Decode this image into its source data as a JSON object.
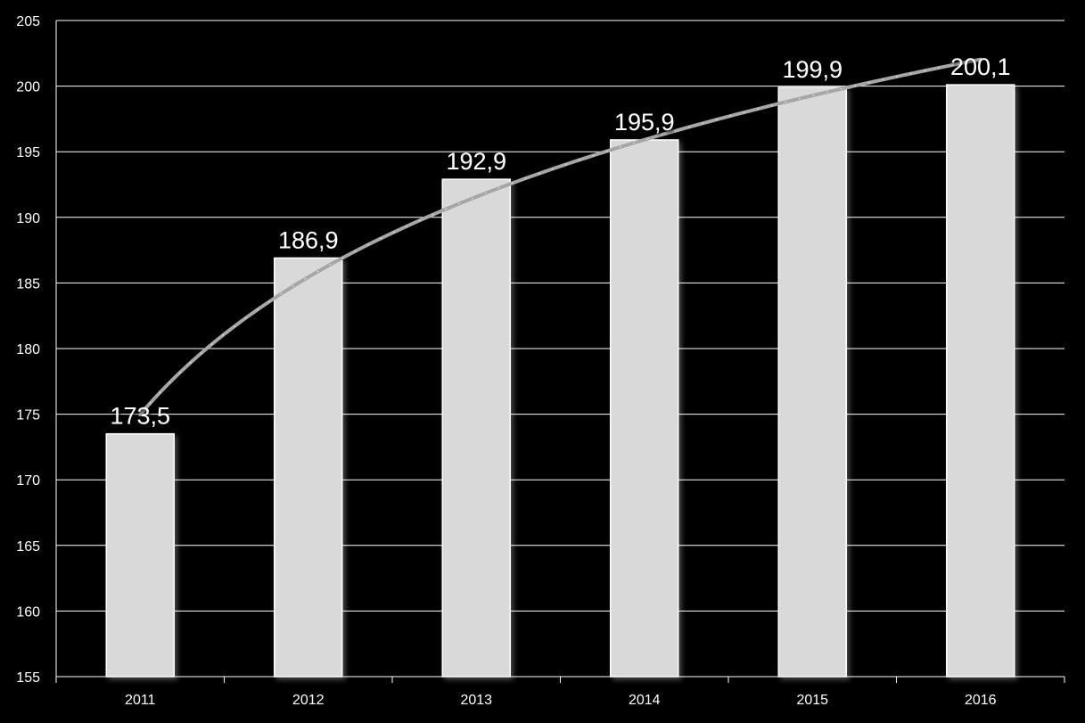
{
  "chart_data": {
    "type": "bar",
    "categories": [
      "2011",
      "2012",
      "2013",
      "2014",
      "2015",
      "2016"
    ],
    "values": [
      173.5,
      186.9,
      192.9,
      195.9,
      199.9,
      200.1
    ],
    "data_labels": [
      "173,5",
      "186,9",
      "192,9",
      "195,9",
      "199,9",
      "200,1"
    ],
    "ylim": [
      155,
      205
    ],
    "yticks": [
      155,
      160,
      165,
      170,
      175,
      180,
      185,
      190,
      195,
      200,
      205
    ],
    "grid": true,
    "trendline": {
      "type": "logarithmic",
      "visible": true
    },
    "colors": {
      "background": "#000000",
      "bar_fill": "#d9d9d9",
      "bar_stroke": "#ffffff",
      "grid": "#ffffff",
      "trend": "#a6a6a6",
      "text": "#ffffff"
    }
  }
}
